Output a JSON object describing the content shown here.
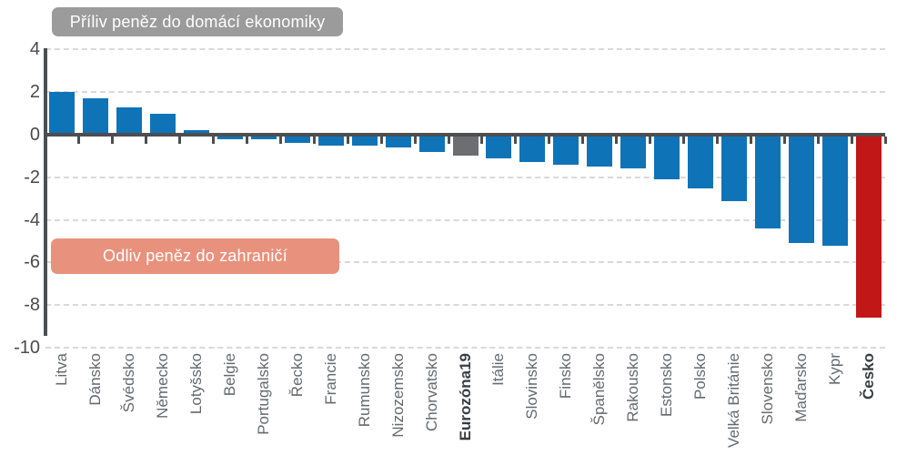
{
  "labels": {
    "inflow": "Příliv peněz do domácí ekonomiky",
    "outflow": "Odliv peněz do zahraničí"
  },
  "colors": {
    "bar_default": "#0f73b8",
    "bar_eurozone": "#6d6e71",
    "bar_czechia": "#c11716",
    "inflow_box": "#9b9b9b",
    "outflow_box": "#e8917c",
    "axis": "#4d4e50",
    "gridline": "#d9d9d9",
    "ytick_text": "#4a4a4c",
    "xtick_text": "#66686b",
    "xtick_text_emphasis": "#3b3d40"
  },
  "chart_data": {
    "type": "bar",
    "title": "",
    "xlabel": "",
    "ylabel": "",
    "categories": [
      "Litva",
      "Dánsko",
      "Švédsko",
      "Německo",
      "Lotyšsko",
      "Belgie",
      "Portugalsko",
      "Řecko",
      "Francie",
      "Rumunsko",
      "Nizozemsko",
      "Chorvatsko",
      "Eurozóna19",
      "Itálie",
      "Slovinsko",
      "Finsko",
      "Španělsko",
      "Rakousko",
      "Estonsko",
      "Polsko",
      "Velká Británie",
      "Slovensko",
      "Maďarsko",
      "Kypr",
      "Česko"
    ],
    "values": [
      2.0,
      1.7,
      1.3,
      1.0,
      0.2,
      -0.2,
      -0.2,
      -0.4,
      -0.5,
      -0.5,
      -0.6,
      -0.8,
      -1.0,
      -1.1,
      -1.3,
      -1.4,
      -1.5,
      -1.6,
      -2.1,
      -2.5,
      -3.1,
      -4.4,
      -5.1,
      -5.2,
      -8.6
    ],
    "emphasized_categories": [
      "Eurozóna19",
      "Česko"
    ],
    "special_bar_colors": {
      "Eurozóna19": "#6d6e71",
      "Česko": "#c11716"
    },
    "y_ticks": [
      4,
      2,
      0,
      -2,
      -4,
      -6,
      -8,
      -10
    ],
    "ylim": [
      -10,
      4
    ],
    "grid": "dashed horizontal, zero line solid",
    "legend": "none",
    "annotations": [
      {
        "text": "Příliv peněz do domácí ekonomiky",
        "meaning": "inflow of money to domestic economy",
        "position": "top-left"
      },
      {
        "text": "Odliv peněz do zahraničí",
        "meaning": "outflow of money abroad",
        "position": "left, around y=-5.5"
      }
    ]
  }
}
